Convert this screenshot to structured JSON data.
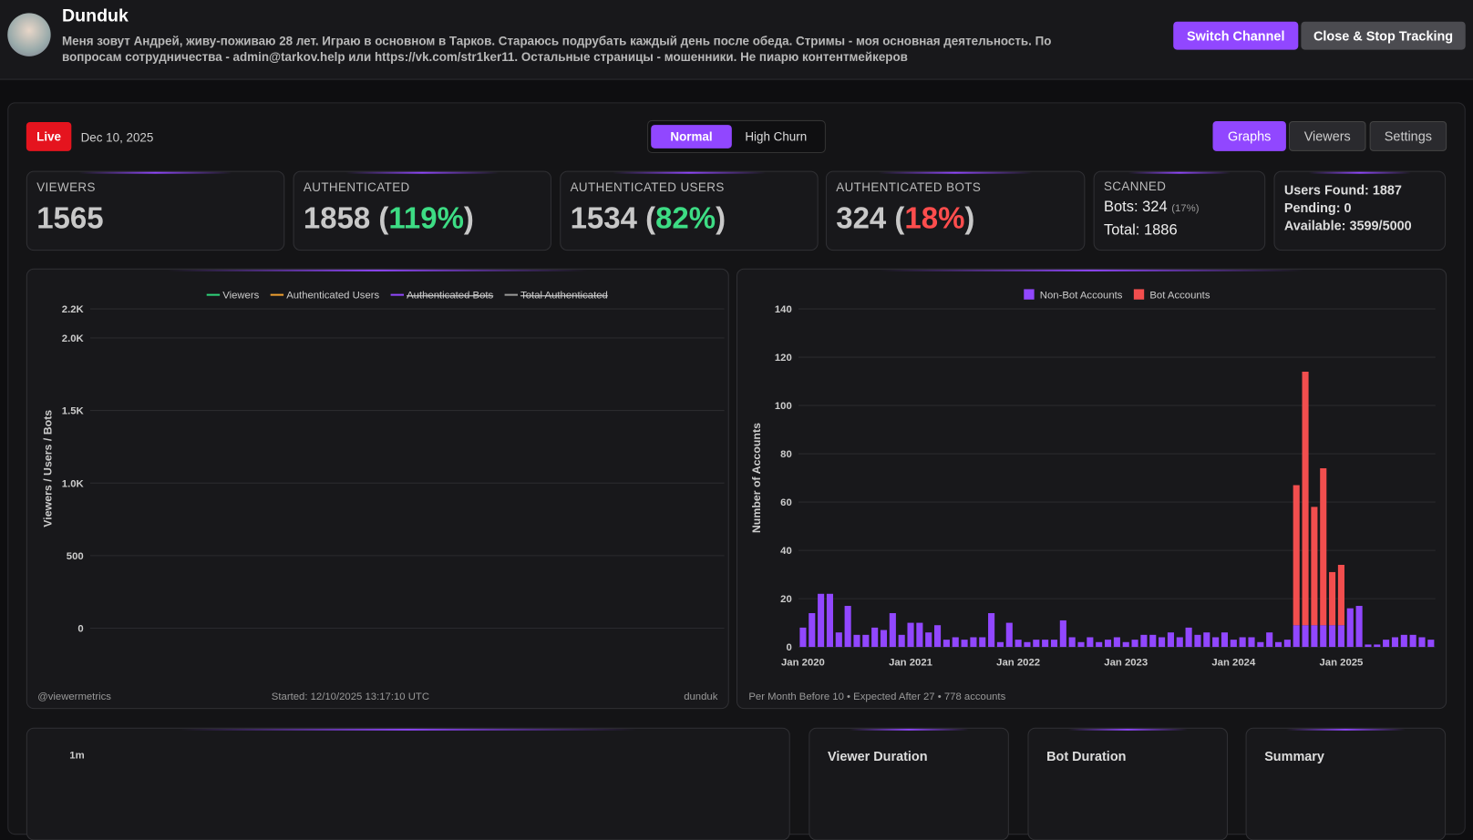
{
  "header": {
    "name": "Dunduk",
    "bio": "Меня зовут Андрей, живу-поживаю 28 лет. Играю в основном в Тарков. Стараюсь подрубать каждый день после обеда. Стримы - моя основная деятельность. По вопросам сотрудничества - admin@tarkov.help или https://vk.com/str1ker11. Остальные страницы - мошенники. Не пиарю контентмейкеров",
    "buttons": [
      "Switch Channel",
      "Close & Stop Tracking"
    ]
  },
  "toolbar": {
    "status": "Live",
    "date": "Dec 10, 2025",
    "modes": [
      "Normal",
      "High Churn"
    ],
    "active_mode": 0,
    "tabs": [
      "Graphs",
      "Viewers",
      "Settings"
    ],
    "active_tab": 0
  },
  "stats": [
    {
      "label": "VIEWERS",
      "value": 1565
    },
    {
      "label": "AUTHENTICATED",
      "value": 1858,
      "percent": "(119%)",
      "percent_color": "#3ddc84"
    },
    {
      "label": "AUTHENTICATED USERS",
      "value": 1534,
      "percent": "(82%)",
      "percent_color": "#3ddc84"
    },
    {
      "label": "AUTHENTICATED BOTS",
      "value": 324,
      "percent": "(18%)",
      "percent_color": "#ff4d4d"
    }
  ],
  "scanned": {
    "label": "SCANNED",
    "bots": "Bots: 324",
    "bots_percent": "(17%)",
    "total": "Total: 1886"
  },
  "capacity": [
    "Users Found: 1887",
    "Pending: 0",
    "Available: 3599/5000"
  ],
  "chart_data": [
    {
      "type": "line",
      "ylabel": "Viewers / Users / Bots",
      "ylim": [
        0,
        2200
      ],
      "yticks": [
        0,
        500,
        {
          "value": 1000,
          "label": "1.0K"
        },
        {
          "value": 1500,
          "label": "1.5K"
        },
        {
          "value": 2000,
          "label": "2.0K"
        },
        {
          "value": 2200,
          "label": "2.2K"
        }
      ],
      "grid": true,
      "legend": "top",
      "x": [],
      "series": [
        {
          "name": "Viewers",
          "color": "#2fd37a",
          "values": []
        },
        {
          "name": "Authenticated Users",
          "color": "#f0a030",
          "values": []
        },
        {
          "name": "Authenticated Bots",
          "color": "#9147ff",
          "hidden": true,
          "values": []
        },
        {
          "name": "Total Authenticated",
          "color": "#9a9a9a",
          "hidden": true,
          "values": []
        }
      ],
      "footer": [
        "@viewermetrics",
        "Started: 12/10/2025 13:17:10 UTC",
        "dunduk"
      ]
    },
    {
      "type": "stacked_bar",
      "ylabel": "Number of Accounts",
      "ylim": [
        0,
        140
      ],
      "yticks": [
        0,
        20,
        40,
        60,
        80,
        100,
        120,
        140
      ],
      "grid": true,
      "legend": "top",
      "categories": [
        "Jan 2020",
        null,
        null,
        null,
        null,
        null,
        null,
        null,
        null,
        null,
        null,
        null,
        "Jan 2021",
        null,
        null,
        null,
        null,
        null,
        null,
        null,
        null,
        null,
        null,
        null,
        "Jan 2022",
        null,
        null,
        null,
        null,
        null,
        null,
        null,
        null,
        null,
        null,
        null,
        "Jan 2023",
        null,
        null,
        null,
        null,
        null,
        null,
        null,
        null,
        null,
        null,
        null,
        "Jan 2024",
        null,
        null,
        null,
        null,
        null,
        null,
        null,
        null,
        null,
        null,
        null,
        "Jan 2025",
        null,
        null,
        null,
        null,
        null,
        null,
        null,
        null,
        null,
        null
      ],
      "series": [
        {
          "name": "Non-Bot Accounts",
          "color": "#9147ff",
          "values": [
            8,
            14,
            22,
            22,
            6,
            17,
            5,
            5,
            8,
            7,
            14,
            5,
            10,
            10,
            6,
            9,
            3,
            4,
            3,
            4,
            4,
            14,
            2,
            10,
            3,
            2,
            3,
            3,
            3,
            11,
            4,
            2,
            4,
            2,
            3,
            4,
            2,
            3,
            5,
            5,
            4,
            6,
            4,
            8,
            5,
            6,
            4,
            6,
            3,
            4,
            4,
            2,
            6,
            2,
            3,
            9,
            9,
            9,
            9,
            9,
            9,
            16,
            17,
            1,
            1,
            3,
            4,
            5,
            5,
            4,
            3
          ]
        },
        {
          "name": "Bot Accounts",
          "color": "#f24e4e",
          "values": [
            0,
            0,
            0,
            0,
            0,
            0,
            0,
            0,
            0,
            0,
            0,
            0,
            0,
            0,
            0,
            0,
            0,
            0,
            0,
            0,
            0,
            0,
            0,
            0,
            0,
            0,
            0,
            0,
            0,
            0,
            0,
            0,
            0,
            0,
            0,
            0,
            0,
            0,
            0,
            0,
            0,
            0,
            0,
            0,
            0,
            0,
            0,
            0,
            0,
            0,
            0,
            0,
            0,
            0,
            0,
            58,
            105,
            49,
            65,
            22,
            25,
            0,
            0,
            0,
            0,
            0,
            0,
            0,
            0,
            0,
            0
          ]
        }
      ],
      "footer": "Per Month Before 10 • Expected After 27 • 778 accounts"
    }
  ],
  "bottom": {
    "activity_tick": "1m",
    "cards": [
      "Viewer Duration",
      "Bot Duration",
      "Summary"
    ]
  }
}
